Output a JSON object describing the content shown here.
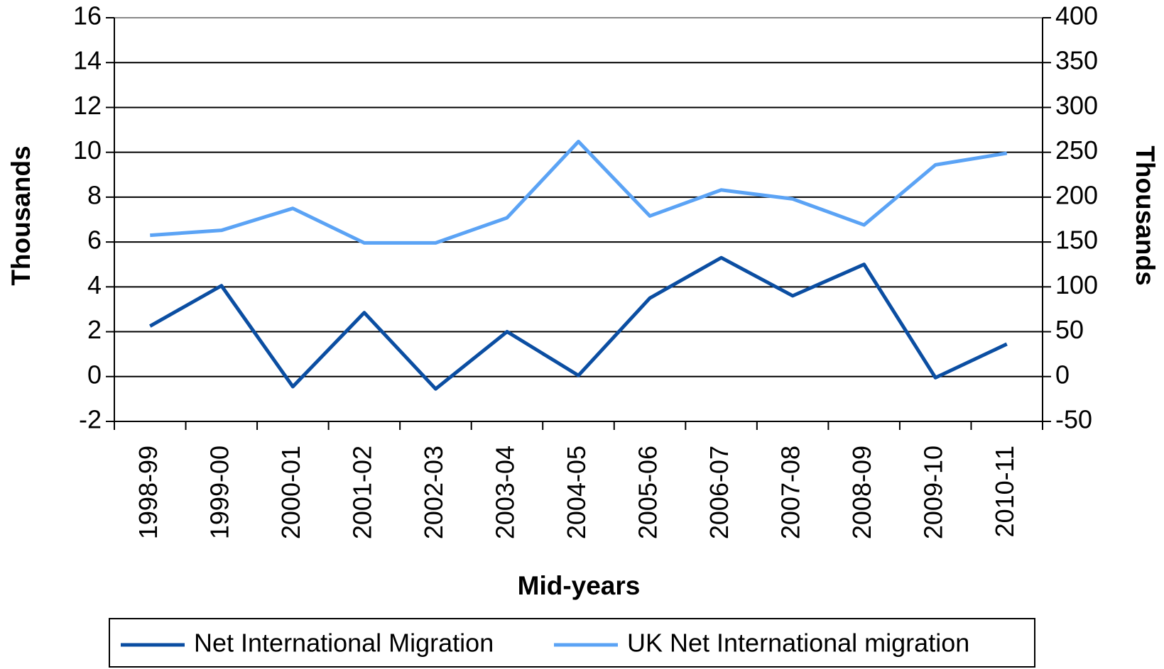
{
  "chart_data": {
    "type": "line",
    "categories": [
      "1998-99",
      "1999-00",
      "2000-01",
      "2001-02",
      "2002-03",
      "2003-04",
      "2004-05",
      "2005-06",
      "2006-07",
      "2007-08",
      "2008-09",
      "2009-10",
      "2010-11"
    ],
    "series": [
      {
        "name": "Net International Migration",
        "color": "#0b4ea2",
        "values": [
          2.25,
          4.05,
          -0.45,
          2.85,
          -0.55,
          2.0,
          0.05,
          3.5,
          5.3,
          3.6,
          5.0,
          -0.05,
          1.45
        ]
      },
      {
        "name": "UK Net International migration",
        "color": "#5ba3f5",
        "axis": "y2",
        "values": [
          157.5,
          163,
          187.5,
          149,
          149,
          177,
          262,
          179,
          208,
          198,
          169,
          236,
          249
        ]
      }
    ],
    "ylim": [
      -2,
      16
    ],
    "yticks": [
      -2,
      0,
      2,
      4,
      6,
      8,
      10,
      12,
      14,
      16
    ],
    "y2lim": [
      -50,
      400
    ],
    "y2ticks": [
      -50,
      0,
      50,
      100,
      150,
      200,
      250,
      300,
      350,
      400
    ],
    "ylabel": "Thousands",
    "y2label": "Thousands",
    "xlabel": "Mid-years",
    "grid": true,
    "legend": "bottom"
  }
}
